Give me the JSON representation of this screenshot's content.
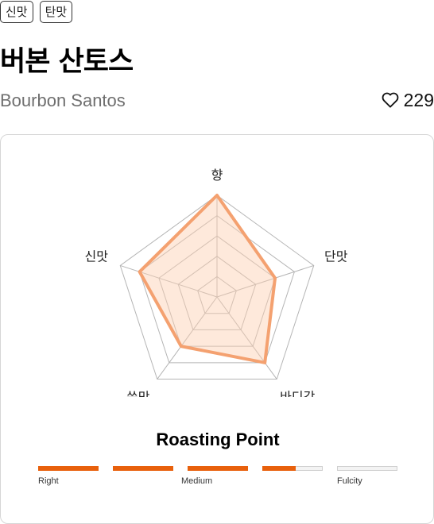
{
  "tags": [
    "신맛",
    "탄맛"
  ],
  "title": "버본 산토스",
  "subtitle": "Bourbon Santos",
  "likes": {
    "count": "229",
    "icon": "heart-outline-icon"
  },
  "flavor_chart": {
    "axes": [
      "향",
      "단맛",
      "바디감",
      "쓴맛",
      "신맛"
    ],
    "levels": 5,
    "max": 5,
    "values": [
      5,
      3,
      4,
      3,
      4
    ],
    "line_color": "#f4a170",
    "fill_color": "rgba(252, 206, 176, 0.45)",
    "grid_color": "#b5b5b5"
  },
  "roasting": {
    "title": "Roasting Point",
    "segments": 5,
    "level": 3.55,
    "labels": [
      "Right",
      "Medium",
      "Fulcity"
    ],
    "accent": "#e8600c"
  }
}
